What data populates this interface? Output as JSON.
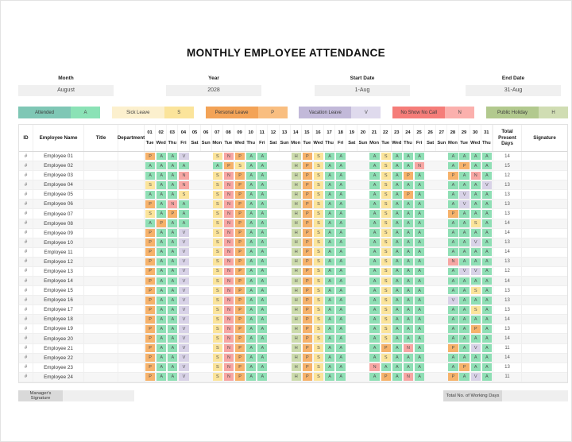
{
  "title": "MONTHLY EMPLOYEE ATTENDANCE",
  "info": {
    "month_label": "Month",
    "month_value": "August",
    "year_label": "Year",
    "year_value": "2028",
    "start_label": "Start Date",
    "start_value": "1-Aug",
    "end_label": "End Date",
    "end_value": "31-Aug"
  },
  "legend": [
    {
      "label": "Attended",
      "code": "A",
      "label_color": "#7FC7B5",
      "code_color": "#8BE2B6"
    },
    {
      "label": "Sick Leave",
      "code": "S",
      "label_color": "#FCF0CE",
      "code_color": "#FBE49B"
    },
    {
      "label": "Personal Leave",
      "code": "P",
      "label_color": "#F3A357",
      "code_color": "#F9BE80"
    },
    {
      "label": "Vacation Leave",
      "code": "V",
      "label_color": "#C2B9D9",
      "code_color": "#DFDAED"
    },
    {
      "label": "No Show No Call",
      "code": "N",
      "label_color": "#F57D79",
      "code_color": "#FBB0AD"
    },
    {
      "label": "Public Holiday",
      "code": "H",
      "label_color": "#B2C98E",
      "code_color": "#D0DDB3"
    }
  ],
  "cell_colors": {
    "A": "#8FDFB5",
    "S": "#FBE49B",
    "P": "#F6B26B",
    "V": "#D8D2E7",
    "N": "#F7A6A3",
    "H": "#CCDBAC"
  },
  "table": {
    "headers": {
      "id": "ID",
      "name": "Employee Name",
      "title": "Title",
      "department": "Department",
      "total": "Total Present Days",
      "signature": "Signature"
    },
    "days": [
      {
        "num": "01",
        "dow": "Tue"
      },
      {
        "num": "02",
        "dow": "Wed"
      },
      {
        "num": "03",
        "dow": "Thu"
      },
      {
        "num": "04",
        "dow": "Fri"
      },
      {
        "num": "05",
        "dow": "Sat"
      },
      {
        "num": "06",
        "dow": "Sun"
      },
      {
        "num": "07",
        "dow": "Mon"
      },
      {
        "num": "08",
        "dow": "Tue"
      },
      {
        "num": "09",
        "dow": "Wed"
      },
      {
        "num": "10",
        "dow": "Thu"
      },
      {
        "num": "11",
        "dow": "Fri"
      },
      {
        "num": "12",
        "dow": "Sat"
      },
      {
        "num": "13",
        "dow": "Sun"
      },
      {
        "num": "14",
        "dow": "Mon"
      },
      {
        "num": "15",
        "dow": "Tue"
      },
      {
        "num": "16",
        "dow": "Wed"
      },
      {
        "num": "17",
        "dow": "Thu"
      },
      {
        "num": "18",
        "dow": "Fri"
      },
      {
        "num": "19",
        "dow": "Sat"
      },
      {
        "num": "20",
        "dow": "Sun"
      },
      {
        "num": "21",
        "dow": "Mon"
      },
      {
        "num": "22",
        "dow": "Tue"
      },
      {
        "num": "23",
        "dow": "Wed"
      },
      {
        "num": "24",
        "dow": "Thu"
      },
      {
        "num": "25",
        "dow": "Fri"
      },
      {
        "num": "26",
        "dow": "Sat"
      },
      {
        "num": "27",
        "dow": "Sun"
      },
      {
        "num": "28",
        "dow": "Mon"
      },
      {
        "num": "29",
        "dow": "Tue"
      },
      {
        "num": "30",
        "dow": "Wed"
      },
      {
        "num": "31",
        "dow": "Thu"
      }
    ],
    "employees": [
      {
        "id": "#",
        "name": "Employee 01",
        "title": "",
        "department": "",
        "days": [
          "P",
          "A",
          "A",
          "V",
          "",
          "",
          "S",
          "N",
          "P",
          "A",
          "A",
          "",
          "",
          "H",
          "P",
          "S",
          "A",
          "A",
          "",
          "",
          "A",
          "S",
          "A",
          "A",
          "A",
          "",
          "",
          "A",
          "A",
          "A",
          "A"
        ],
        "total": "14"
      },
      {
        "id": "#",
        "name": "Employee 02",
        "title": "",
        "department": "",
        "days": [
          "A",
          "A",
          "A",
          "A",
          "",
          "",
          "A",
          "P",
          "S",
          "A",
          "A",
          "",
          "",
          "H",
          "P",
          "S",
          "A",
          "A",
          "",
          "",
          "A",
          "S",
          "A",
          "A",
          "N",
          "",
          "",
          "A",
          "P",
          "A",
          "A"
        ],
        "total": "15"
      },
      {
        "id": "#",
        "name": "Employee 03",
        "title": "",
        "department": "",
        "days": [
          "A",
          "A",
          "A",
          "N",
          "",
          "",
          "S",
          "N",
          "P",
          "A",
          "A",
          "",
          "",
          "H",
          "P",
          "S",
          "A",
          "A",
          "",
          "",
          "A",
          "S",
          "A",
          "P",
          "A",
          "",
          "",
          "P",
          "A",
          "N",
          "A"
        ],
        "total": "12"
      },
      {
        "id": "#",
        "name": "Employee 04",
        "title": "",
        "department": "",
        "days": [
          "S",
          "A",
          "A",
          "N",
          "",
          "",
          "S",
          "N",
          "P",
          "A",
          "A",
          "",
          "",
          "H",
          "P",
          "S",
          "A",
          "A",
          "",
          "",
          "A",
          "S",
          "A",
          "A",
          "A",
          "",
          "",
          "A",
          "A",
          "A",
          "V"
        ],
        "total": "13"
      },
      {
        "id": "#",
        "name": "Employee 05",
        "title": "",
        "department": "",
        "days": [
          "A",
          "A",
          "A",
          "S",
          "",
          "",
          "S",
          "N",
          "P",
          "A",
          "A",
          "",
          "",
          "H",
          "P",
          "S",
          "A",
          "A",
          "",
          "",
          "A",
          "S",
          "A",
          "P",
          "A",
          "",
          "",
          "A",
          "V",
          "A",
          "A"
        ],
        "total": "13"
      },
      {
        "id": "#",
        "name": "Employee 06",
        "title": "",
        "department": "",
        "days": [
          "P",
          "A",
          "N",
          "A",
          "",
          "",
          "S",
          "N",
          "P",
          "A",
          "A",
          "",
          "",
          "H",
          "P",
          "S",
          "A",
          "A",
          "",
          "",
          "A",
          "S",
          "A",
          "A",
          "A",
          "",
          "",
          "A",
          "V",
          "A",
          "A"
        ],
        "total": "13"
      },
      {
        "id": "#",
        "name": "Employee 07",
        "title": "",
        "department": "",
        "days": [
          "S",
          "A",
          "P",
          "A",
          "",
          "",
          "S",
          "N",
          "P",
          "A",
          "A",
          "",
          "",
          "H",
          "P",
          "S",
          "A",
          "A",
          "",
          "",
          "A",
          "S",
          "A",
          "A",
          "A",
          "",
          "",
          "P",
          "A",
          "A",
          "A"
        ],
        "total": "13"
      },
      {
        "id": "#",
        "name": "Employee 08",
        "title": "",
        "department": "",
        "days": [
          "A",
          "P",
          "A",
          "A",
          "",
          "",
          "S",
          "N",
          "P",
          "A",
          "A",
          "",
          "",
          "H",
          "P",
          "S",
          "A",
          "A",
          "",
          "",
          "A",
          "S",
          "A",
          "A",
          "A",
          "",
          "",
          "A",
          "A",
          "S",
          "A"
        ],
        "total": "14"
      },
      {
        "id": "#",
        "name": "Employee 09",
        "title": "",
        "department": "",
        "days": [
          "P",
          "A",
          "A",
          "V",
          "",
          "",
          "S",
          "N",
          "P",
          "A",
          "A",
          "",
          "",
          "H",
          "P",
          "S",
          "A",
          "A",
          "",
          "",
          "A",
          "S",
          "A",
          "A",
          "A",
          "",
          "",
          "A",
          "A",
          "A",
          "A"
        ],
        "total": "14"
      },
      {
        "id": "#",
        "name": "Employee 10",
        "title": "",
        "department": "",
        "days": [
          "P",
          "A",
          "A",
          "V",
          "",
          "",
          "S",
          "N",
          "P",
          "A",
          "A",
          "",
          "",
          "H",
          "P",
          "S",
          "A",
          "A",
          "",
          "",
          "A",
          "S",
          "A",
          "A",
          "A",
          "",
          "",
          "A",
          "A",
          "V",
          "A"
        ],
        "total": "13"
      },
      {
        "id": "#",
        "name": "Employee 11",
        "title": "",
        "department": "",
        "days": [
          "P",
          "A",
          "A",
          "V",
          "",
          "",
          "S",
          "N",
          "P",
          "A",
          "A",
          "",
          "",
          "H",
          "P",
          "S",
          "A",
          "A",
          "",
          "",
          "A",
          "S",
          "A",
          "A",
          "A",
          "",
          "",
          "A",
          "A",
          "A",
          "A"
        ],
        "total": "14"
      },
      {
        "id": "#",
        "name": "Employee 12",
        "title": "",
        "department": "",
        "days": [
          "P",
          "A",
          "A",
          "V",
          "",
          "",
          "S",
          "N",
          "P",
          "A",
          "A",
          "",
          "",
          "H",
          "P",
          "S",
          "A",
          "A",
          "",
          "",
          "A",
          "S",
          "A",
          "A",
          "A",
          "",
          "",
          "N",
          "A",
          "A",
          "A"
        ],
        "total": "13"
      },
      {
        "id": "#",
        "name": "Employee 13",
        "title": "",
        "department": "",
        "days": [
          "P",
          "A",
          "A",
          "V",
          "",
          "",
          "S",
          "N",
          "P",
          "A",
          "A",
          "",
          "",
          "H",
          "P",
          "S",
          "A",
          "A",
          "",
          "",
          "A",
          "S",
          "A",
          "A",
          "A",
          "",
          "",
          "A",
          "V",
          "V",
          "A"
        ],
        "total": "12"
      },
      {
        "id": "#",
        "name": "Employee 14",
        "title": "",
        "department": "",
        "days": [
          "P",
          "A",
          "A",
          "V",
          "",
          "",
          "S",
          "N",
          "P",
          "A",
          "A",
          "",
          "",
          "H",
          "P",
          "S",
          "A",
          "A",
          "",
          "",
          "A",
          "S",
          "A",
          "A",
          "A",
          "",
          "",
          "A",
          "A",
          "A",
          "A"
        ],
        "total": "14"
      },
      {
        "id": "#",
        "name": "Employee 15",
        "title": "",
        "department": "",
        "days": [
          "P",
          "A",
          "A",
          "V",
          "",
          "",
          "S",
          "N",
          "P",
          "A",
          "A",
          "",
          "",
          "H",
          "P",
          "S",
          "A",
          "A",
          "",
          "",
          "A",
          "S",
          "A",
          "A",
          "A",
          "",
          "",
          "A",
          "A",
          "S",
          "A"
        ],
        "total": "13"
      },
      {
        "id": "#",
        "name": "Employee 16",
        "title": "",
        "department": "",
        "days": [
          "P",
          "A",
          "A",
          "V",
          "",
          "",
          "S",
          "N",
          "P",
          "A",
          "A",
          "",
          "",
          "H",
          "P",
          "S",
          "A",
          "A",
          "",
          "",
          "A",
          "S",
          "A",
          "A",
          "A",
          "",
          "",
          "V",
          "A",
          "A",
          "A"
        ],
        "total": "13"
      },
      {
        "id": "#",
        "name": "Employee 17",
        "title": "",
        "department": "",
        "days": [
          "P",
          "A",
          "A",
          "V",
          "",
          "",
          "S",
          "N",
          "P",
          "A",
          "A",
          "",
          "",
          "H",
          "P",
          "S",
          "A",
          "A",
          "",
          "",
          "A",
          "S",
          "A",
          "A",
          "A",
          "",
          "",
          "A",
          "A",
          "S",
          "A"
        ],
        "total": "13"
      },
      {
        "id": "#",
        "name": "Employee 18",
        "title": "",
        "department": "",
        "days": [
          "P",
          "A",
          "A",
          "V",
          "",
          "",
          "S",
          "N",
          "P",
          "A",
          "A",
          "",
          "",
          "H",
          "P",
          "S",
          "A",
          "A",
          "",
          "",
          "A",
          "S",
          "A",
          "A",
          "A",
          "",
          "",
          "A",
          "A",
          "A",
          "A"
        ],
        "total": "14"
      },
      {
        "id": "#",
        "name": "Employee 19",
        "title": "",
        "department": "",
        "days": [
          "P",
          "A",
          "A",
          "V",
          "",
          "",
          "S",
          "N",
          "P",
          "A",
          "A",
          "",
          "",
          "H",
          "P",
          "S",
          "A",
          "A",
          "",
          "",
          "A",
          "S",
          "A",
          "A",
          "A",
          "",
          "",
          "A",
          "A",
          "P",
          "A"
        ],
        "total": "13"
      },
      {
        "id": "#",
        "name": "Employee 20",
        "title": "",
        "department": "",
        "days": [
          "P",
          "A",
          "A",
          "V",
          "",
          "",
          "S",
          "N",
          "P",
          "A",
          "A",
          "",
          "",
          "H",
          "P",
          "S",
          "A",
          "A",
          "",
          "",
          "A",
          "S",
          "A",
          "A",
          "A",
          "",
          "",
          "A",
          "A",
          "A",
          "A"
        ],
        "total": "14"
      },
      {
        "id": "#",
        "name": "Employee 21",
        "title": "",
        "department": "",
        "days": [
          "P",
          "A",
          "A",
          "V",
          "",
          "",
          "S",
          "N",
          "P",
          "A",
          "A",
          "",
          "",
          "H",
          "P",
          "S",
          "A",
          "A",
          "",
          "",
          "A",
          "P",
          "A",
          "N",
          "A",
          "",
          "",
          "P",
          "A",
          "V",
          "A"
        ],
        "total": "11"
      },
      {
        "id": "#",
        "name": "Employee 22",
        "title": "",
        "department": "",
        "days": [
          "P",
          "A",
          "A",
          "V",
          "",
          "",
          "S",
          "N",
          "P",
          "A",
          "A",
          "",
          "",
          "H",
          "P",
          "S",
          "A",
          "A",
          "",
          "",
          "A",
          "S",
          "A",
          "A",
          "A",
          "",
          "",
          "A",
          "A",
          "A",
          "A"
        ],
        "total": "14"
      },
      {
        "id": "#",
        "name": "Employee 23",
        "title": "",
        "department": "",
        "days": [
          "P",
          "A",
          "A",
          "V",
          "",
          "",
          "S",
          "N",
          "P",
          "A",
          "A",
          "",
          "",
          "H",
          "P",
          "S",
          "A",
          "A",
          "",
          "",
          "N",
          "A",
          "A",
          "A",
          "A",
          "",
          "",
          "A",
          "P",
          "A",
          "A"
        ],
        "total": "13"
      },
      {
        "id": "#",
        "name": "Employee 24",
        "title": "",
        "department": "",
        "days": [
          "P",
          "A",
          "A",
          "V",
          "",
          "",
          "S",
          "N",
          "P",
          "A",
          "A",
          "",
          "",
          "H",
          "P",
          "S",
          "A",
          "A",
          "",
          "",
          "A",
          "P",
          "A",
          "N",
          "A",
          "",
          "",
          "P",
          "A",
          "V",
          "A"
        ],
        "total": "11"
      }
    ]
  },
  "footer": {
    "manager_label": "Manager's Signature",
    "working_days_label": "Total No. of Working Days"
  }
}
